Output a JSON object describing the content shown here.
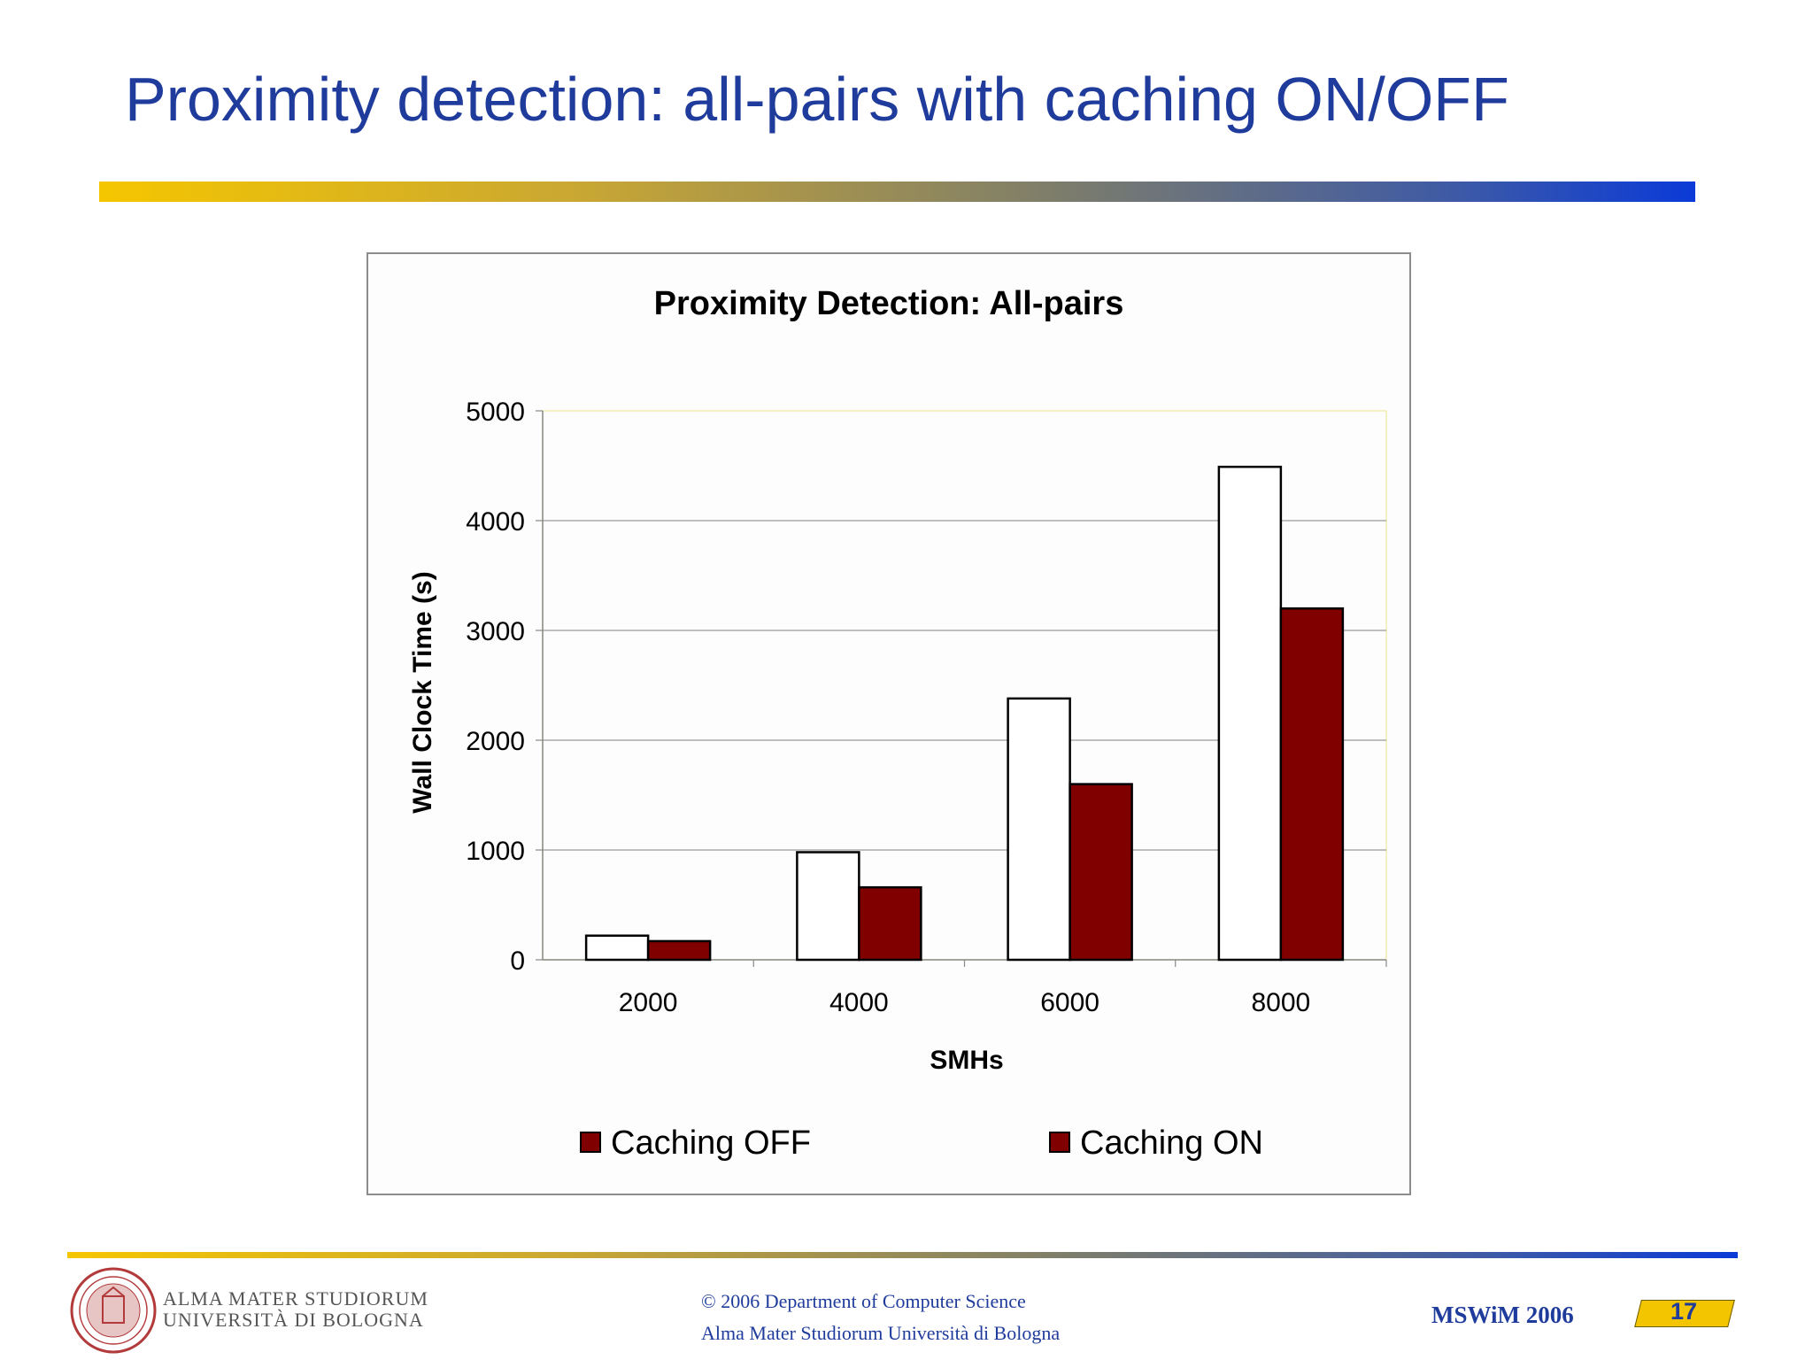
{
  "slide": {
    "title": "Proximity detection: all-pairs with caching ON/OFF"
  },
  "chart_data": {
    "type": "bar",
    "title": "Proximity Detection: All-pairs",
    "xlabel": "SMHs",
    "ylabel": "Wall Clock Time (s)",
    "categories": [
      "2000",
      "4000",
      "6000",
      "8000"
    ],
    "series": [
      {
        "name": "Caching OFF",
        "values": [
          220,
          980,
          2380,
          4490
        ],
        "color": "#ffffff"
      },
      {
        "name": "Caching ON",
        "values": [
          170,
          660,
          1600,
          3200
        ],
        "color": "#800000"
      }
    ],
    "ylim": [
      0,
      5000
    ],
    "yticks": [
      "0",
      "1000",
      "2000",
      "3000",
      "4000",
      "5000"
    ],
    "grid": true,
    "legend": "bottom",
    "legend_swatch_color": "#800000"
  },
  "footer": {
    "university_line1": "ALMA MATER STUDIORUM",
    "university_line2": "UNIVERSITÀ DI BOLOGNA",
    "copyright_line1": "© 2006 Department of Computer Science",
    "copyright_line2": "Alma Mater Studiorum Università di Bologna",
    "conference": "MSWiM 2006",
    "page_number": "17"
  }
}
